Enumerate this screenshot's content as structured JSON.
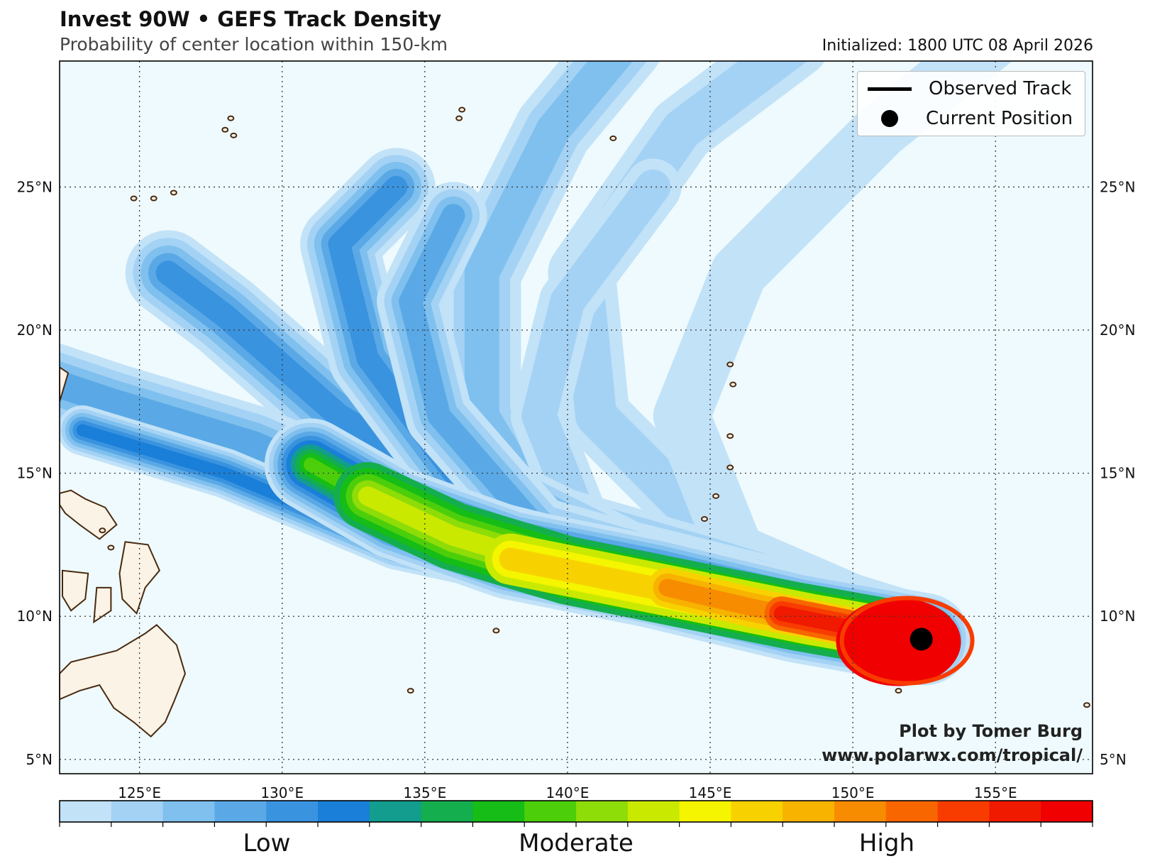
{
  "header": {
    "title": "Invest 90W • GEFS Track Density",
    "subtitle": "Probability of center location within 150-km",
    "initialized": "Initialized: 1800 UTC 08 April 2026"
  },
  "legend": {
    "observed_track": "Observed Track",
    "current_position": "Current Position"
  },
  "credit": {
    "line1": "Plot by Tomer Burg",
    "line2": "www.polarwx.com/tropical/"
  },
  "colorbar": {
    "labels": [
      "Low",
      "Moderate",
      "High"
    ],
    "colors": [
      "#c2e2f8",
      "#a4d2f4",
      "#7fc0ee",
      "#5aa9e6",
      "#3a93df",
      "#1a7fd8",
      "#129d8e",
      "#14ae4e",
      "#16bd16",
      "#4ccf0a",
      "#8edc08",
      "#c9e900",
      "#f5f500",
      "#f8d200",
      "#f8b200",
      "#f88c00",
      "#f86600",
      "#f83c00",
      "#f01a00",
      "#f00000"
    ]
  },
  "map": {
    "lon_ticks": [
      "125°E",
      "130°E",
      "135°E",
      "140°E",
      "145°E",
      "150°E",
      "155°E"
    ],
    "lat_ticks": [
      "5°N",
      "10°N",
      "15°N",
      "20°N",
      "25°N"
    ],
    "lon_values": [
      125,
      130,
      135,
      140,
      145,
      150,
      155
    ],
    "lat_values": [
      5,
      10,
      15,
      20,
      25
    ],
    "extent": {
      "lon_min": 122.2,
      "lon_max": 158.4,
      "lat_min": 4.5,
      "lat_max": 29.4
    },
    "ocean_color": "#eefafd",
    "land_color": "#fbf3e6",
    "coast_color": "#4a2a10",
    "current_position": {
      "lon": 152.4,
      "lat": 9.2
    }
  },
  "chart_data": {
    "type": "heatmap",
    "title": "Invest 90W • GEFS Track Density",
    "subtitle": "Probability of center location within 150-km",
    "x_ticks": [
      "125°E",
      "130°E",
      "135°E",
      "140°E",
      "145°E",
      "150°E",
      "155°E"
    ],
    "y_ticks": [
      "5°N",
      "10°N",
      "15°N",
      "20°N",
      "25°N"
    ],
    "colorbar_labels": [
      "Low",
      "Moderate",
      "High"
    ],
    "current_position": {
      "lon": 152.4,
      "lat": 9.2
    }
  }
}
